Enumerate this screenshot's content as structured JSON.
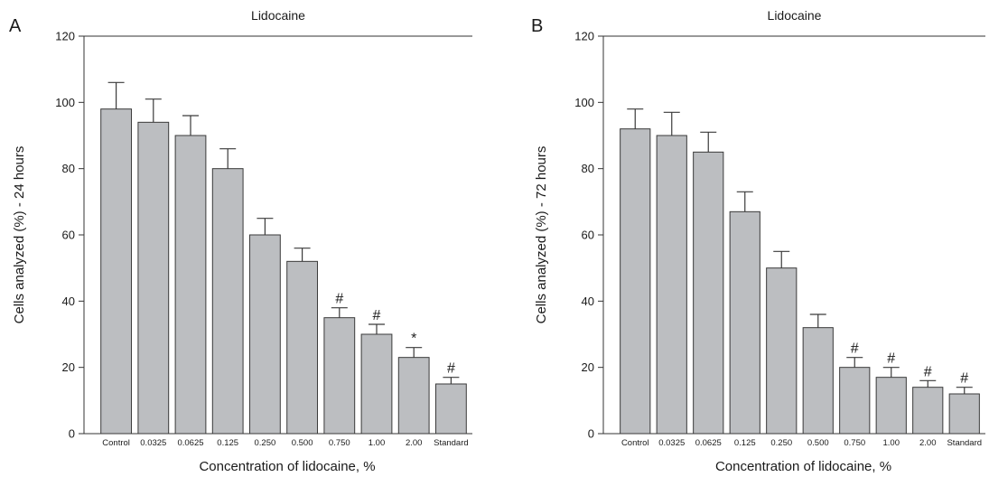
{
  "chart_data": [
    {
      "panel_letter": "A",
      "type": "bar",
      "title": "Lidocaine",
      "xlabel": "Concentration of lidocaine, %",
      "ylabel": "Cells analyzed (%) - 24 hours",
      "ylim": [
        0,
        120
      ],
      "yticks": [
        0,
        20,
        40,
        60,
        80,
        100,
        120
      ],
      "grid": false,
      "bar_color": "#bcbec1",
      "categories": [
        "Control",
        "0.0325",
        "0.0625",
        "0.125",
        "0.250",
        "0.500",
        "0.750",
        "1.00",
        "2.00",
        "Standard"
      ],
      "values": [
        98,
        94,
        90,
        80,
        60,
        52,
        35,
        30,
        23,
        15
      ],
      "error": [
        8,
        7,
        6,
        6,
        5,
        4,
        3,
        3,
        3,
        2
      ],
      "annotations": [
        "",
        "",
        "",
        "",
        "",
        "",
        "#",
        "#",
        "*",
        "#"
      ]
    },
    {
      "panel_letter": "B",
      "type": "bar",
      "title": "Lidocaine",
      "xlabel": "Concentration of lidocaine, %",
      "ylabel": "Cells analyzed (%) - 72 hours",
      "ylim": [
        0,
        120
      ],
      "yticks": [
        0,
        20,
        40,
        60,
        80,
        100,
        120
      ],
      "grid": false,
      "bar_color": "#bcbec1",
      "categories": [
        "Control",
        "0.0325",
        "0.0625",
        "0.125",
        "0.250",
        "0.500",
        "0.750",
        "1.00",
        "2.00",
        "Standard"
      ],
      "values": [
        92,
        90,
        85,
        67,
        50,
        32,
        20,
        17,
        14,
        12
      ],
      "error": [
        6,
        7,
        6,
        6,
        5,
        4,
        3,
        3,
        2,
        2
      ],
      "annotations": [
        "",
        "",
        "",
        "",
        "",
        "",
        "#",
        "#",
        "#",
        "#"
      ]
    }
  ]
}
